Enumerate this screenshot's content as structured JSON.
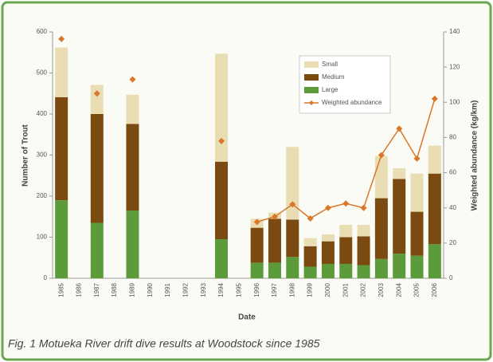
{
  "chart_data": {
    "type": "bar",
    "stacked": true,
    "caption": "Fig. 1 Motueka River drift dive results at Woodstock since 1985",
    "xlabel": "Date",
    "ylabel": "Number of Trout",
    "y2label": "Weighted abundance (kg/km)",
    "categories": [
      "1985",
      "1986",
      "1987",
      "1988",
      "1989",
      "1990",
      "1991",
      "1992",
      "1993",
      "1994",
      "1995",
      "1996",
      "1997",
      "1998",
      "1999",
      "2000",
      "2001",
      "2002",
      "2003",
      "2004",
      "2005",
      "2006"
    ],
    "series": [
      {
        "name": "Small",
        "color": "#e9ddb3",
        "values": [
          121,
          null,
          71,
          null,
          71,
          null,
          null,
          null,
          null,
          263,
          null,
          22,
          15,
          177,
          20,
          17,
          30,
          28,
          103,
          26,
          93,
          68
        ]
      },
      {
        "name": "Medium",
        "color": "#7b4a10",
        "values": [
          251,
          null,
          265,
          null,
          211,
          null,
          null,
          null,
          null,
          189,
          null,
          85,
          107,
          91,
          50,
          55,
          65,
          70,
          148,
          182,
          107,
          172
        ]
      },
      {
        "name": "Large",
        "color": "#5b9b3a",
        "values": [
          190,
          null,
          135,
          null,
          165,
          null,
          null,
          null,
          null,
          95,
          null,
          38,
          38,
          52,
          28,
          35,
          35,
          32,
          47,
          60,
          55,
          83
        ]
      },
      {
        "name": "Weighted abundance",
        "color": "#d9782a",
        "type": "line",
        "axis": "y2",
        "values": [
          136,
          null,
          105,
          null,
          113,
          null,
          null,
          null,
          null,
          78,
          null,
          32,
          35,
          42,
          34,
          40,
          42.5,
          40,
          70,
          85,
          68,
          102
        ]
      }
    ],
    "ylim": [
      0,
      600
    ],
    "yticks": [
      0,
      100,
      200,
      300,
      400,
      500,
      600
    ],
    "y2lim": [
      0,
      140
    ],
    "y2ticks": [
      0,
      20,
      40,
      60,
      80,
      100,
      120,
      140
    ],
    "legend": "top-right"
  }
}
